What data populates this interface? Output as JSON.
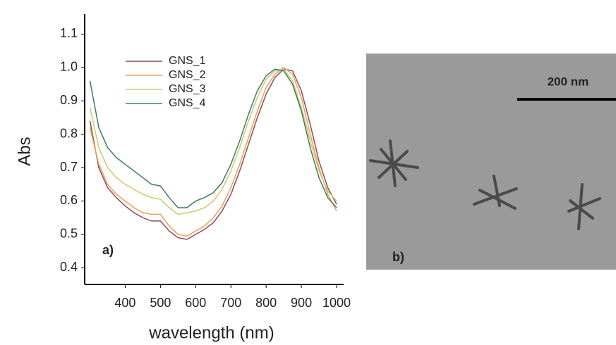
{
  "chart_data": {
    "type": "line",
    "x_label": "wavelength (nm)",
    "y_label": "Abs",
    "annotation": "a)",
    "x": [
      300,
      325,
      350,
      375,
      400,
      425,
      450,
      475,
      500,
      525,
      550,
      575,
      600,
      625,
      650,
      675,
      700,
      725,
      750,
      775,
      800,
      825,
      850,
      875,
      900,
      925,
      950,
      975,
      1000
    ],
    "series": [
      {
        "name": "GNS_1",
        "color": "#8b4a5a",
        "values": [
          0.84,
          0.7,
          0.64,
          0.61,
          0.585,
          0.565,
          0.55,
          0.54,
          0.54,
          0.51,
          0.49,
          0.485,
          0.5,
          0.515,
          0.535,
          0.57,
          0.62,
          0.69,
          0.77,
          0.85,
          0.92,
          0.97,
          0.995,
          0.99,
          0.93,
          0.83,
          0.72,
          0.64,
          0.59
        ]
      },
      {
        "name": "GNS_2",
        "color": "#f0a050",
        "values": [
          0.82,
          0.71,
          0.65,
          0.62,
          0.6,
          0.58,
          0.565,
          0.56,
          0.56,
          0.525,
          0.5,
          0.495,
          0.51,
          0.525,
          0.55,
          0.585,
          0.64,
          0.71,
          0.79,
          0.87,
          0.94,
          0.98,
          1.0,
          0.98,
          0.91,
          0.8,
          0.7,
          0.62,
          0.57
        ]
      },
      {
        "name": "GNS_3",
        "color": "#c8cc6a",
        "values": [
          0.88,
          0.76,
          0.7,
          0.67,
          0.65,
          0.635,
          0.62,
          0.61,
          0.605,
          0.58,
          0.56,
          0.565,
          0.57,
          0.58,
          0.6,
          0.635,
          0.69,
          0.76,
          0.84,
          0.91,
          0.965,
          0.99,
          0.995,
          0.96,
          0.88,
          0.78,
          0.69,
          0.63,
          0.6
        ]
      },
      {
        "name": "GNS_4",
        "color": "#3f7a60",
        "values": [
          0.96,
          0.82,
          0.76,
          0.73,
          0.71,
          0.69,
          0.67,
          0.65,
          0.645,
          0.61,
          0.58,
          0.58,
          0.6,
          0.61,
          0.625,
          0.655,
          0.71,
          0.78,
          0.86,
          0.93,
          0.975,
          0.995,
          0.99,
          0.95,
          0.87,
          0.76,
          0.67,
          0.61,
          0.58
        ]
      }
    ],
    "xlim": [
      285,
      1020
    ],
    "ylim": [
      0.35,
      1.16
    ],
    "xticks": [
      400,
      500,
      600,
      700,
      800,
      900,
      1000
    ],
    "yticks": [
      0.4,
      0.5,
      0.6,
      0.7,
      0.8,
      0.9,
      {
        "value": 1,
        "label": "1.0"
      },
      1.1
    ],
    "grid": false,
    "legend": "upper left"
  },
  "image_panel": {
    "label": "b)",
    "scale_bar": "200 nm"
  }
}
